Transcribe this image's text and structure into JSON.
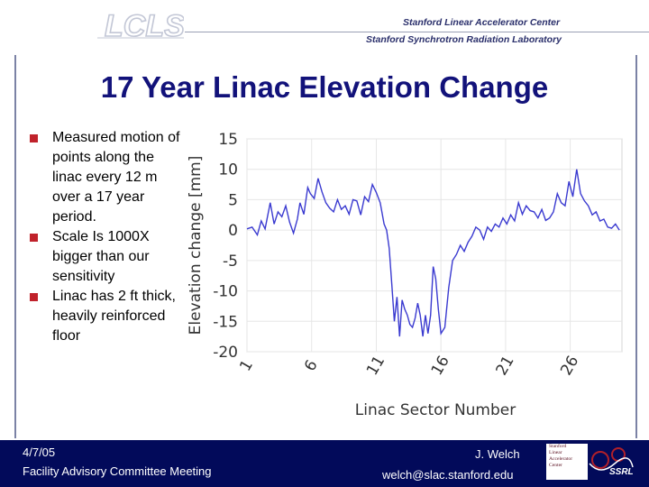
{
  "header": {
    "logo_text": "LCLS",
    "lab_line1": "Stanford Linear Accelerator Center",
    "lab_line2": "Stanford Synchrotron Radiation Laboratory"
  },
  "slide": {
    "title": "17 Year Linac Elevation Change",
    "bullets": [
      "Measured motion of points along the linac every 12 m over a 17 year period.",
      "Scale Is 1000X bigger than our sensitivity",
      "Linac has 2 ft thick, heavily reinforced floor"
    ]
  },
  "footer": {
    "date": "4/7/05",
    "meeting": "Facility Advisory Committee Meeting",
    "author": "J. Welch",
    "email": "welch@slac.stanford.edu",
    "slac_logo_lines": [
      "Stanford",
      "Linear",
      "Accelerator",
      "Center"
    ],
    "ssrl_logo": "SSRL"
  },
  "colors": {
    "title": "#12127a",
    "footer_bg": "#020a5a",
    "bullet_marker": "#c0222b",
    "line": "#3a3ad0",
    "grid": "#e6e6e6"
  },
  "chart_data": {
    "type": "line",
    "title": "",
    "xlabel": "Linac Sector Number",
    "ylabel": "Elevation change [mm]",
    "xlim": [
      1,
      30
    ],
    "ylim": [
      -20,
      15
    ],
    "xticks": [
      1,
      6,
      11,
      16,
      21,
      26
    ],
    "xtick_labels": [
      "1",
      "6",
      "11",
      "16",
      "21",
      "26"
    ],
    "yticks": [
      15,
      10,
      5,
      0,
      -5,
      -10,
      -15,
      -20
    ],
    "ytick_labels": [
      "15",
      "10",
      "5",
      "0",
      "-5",
      "-10",
      "-15",
      "-20"
    ],
    "grid": true,
    "series": [
      {
        "name": "Elevation change",
        "x": [
          1.0,
          1.4,
          1.8,
          2.1,
          2.4,
          2.8,
          3.1,
          3.4,
          3.7,
          4.0,
          4.3,
          4.6,
          4.9,
          5.1,
          5.4,
          5.7,
          5.9,
          6.2,
          6.5,
          6.8,
          7.1,
          7.4,
          7.7,
          8.0,
          8.3,
          8.6,
          8.9,
          9.2,
          9.5,
          9.8,
          10.1,
          10.4,
          10.7,
          11.0,
          11.3,
          11.6,
          11.8,
          12.0,
          12.2,
          12.4,
          12.6,
          12.8,
          13.0,
          13.2,
          13.4,
          13.6,
          13.8,
          14.0,
          14.2,
          14.4,
          14.6,
          14.8,
          15.0,
          15.2,
          15.4,
          15.6,
          15.8,
          16.0,
          16.3,
          16.6,
          16.9,
          17.2,
          17.5,
          17.8,
          18.1,
          18.4,
          18.7,
          19.0,
          19.3,
          19.6,
          19.9,
          20.2,
          20.5,
          20.8,
          21.1,
          21.4,
          21.7,
          22.0,
          22.3,
          22.6,
          22.9,
          23.2,
          23.5,
          23.8,
          24.1,
          24.4,
          24.7,
          25.0,
          25.3,
          25.6,
          25.9,
          26.2,
          26.5,
          26.8,
          27.1,
          27.4,
          27.7,
          28.0,
          28.3,
          28.6,
          28.9,
          29.2,
          29.5,
          29.8
        ],
        "values": [
          0.2,
          0.5,
          -0.8,
          1.5,
          0.2,
          4.5,
          1.0,
          3.0,
          2.2,
          4.0,
          1.3,
          -0.5,
          1.8,
          4.5,
          2.6,
          7.0,
          6.0,
          5.2,
          8.5,
          6.3,
          4.5,
          3.6,
          3.0,
          5.0,
          3.4,
          4.0,
          2.6,
          5.0,
          4.8,
          2.5,
          5.5,
          4.7,
          7.5,
          6.2,
          4.5,
          1.0,
          0.0,
          -3.0,
          -9.0,
          -15.0,
          -11.0,
          -17.5,
          -11.5,
          -13.0,
          -14.0,
          -15.5,
          -16.0,
          -14.5,
          -12.0,
          -14.0,
          -17.5,
          -14.0,
          -17.0,
          -14.0,
          -6.0,
          -8.0,
          -13.0,
          -17.0,
          -16.0,
          -9.5,
          -5.0,
          -4.0,
          -2.5,
          -3.5,
          -2.0,
          -1.0,
          0.5,
          0.0,
          -1.5,
          0.5,
          -0.2,
          1.0,
          0.5,
          2.0,
          1.0,
          2.5,
          1.5,
          4.5,
          2.6,
          4.0,
          3.2,
          3.0,
          2.0,
          3.4,
          1.6,
          2.0,
          3.0,
          6.0,
          4.5,
          4.0,
          8.0,
          5.5,
          10.0,
          6.0,
          4.8,
          4.0,
          2.5,
          3.0,
          1.5,
          1.8,
          0.5,
          0.3,
          1.0,
          0.0
        ]
      }
    ]
  }
}
